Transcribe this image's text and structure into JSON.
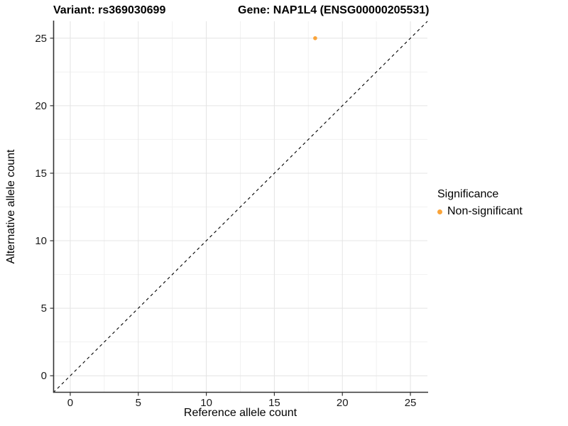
{
  "titles": {
    "left": "Variant: rs369030699",
    "right": "Gene: NAP1L4 (ENSG00000205531)"
  },
  "axes": {
    "x_label": "Reference allele count",
    "y_label": "Alternative allele count"
  },
  "legend": {
    "title": "Significance",
    "items": [
      {
        "label": "Non-significant",
        "color": "#FAA43A"
      }
    ]
  },
  "colors": {
    "point": "#FAA43A",
    "grid_major": "#E4E4E4",
    "grid_minor": "#F1F1F1",
    "axis_line": "#333333",
    "tick_mark": "#333333",
    "tick_label": "#1a1a1a",
    "reference_line": "#000000"
  },
  "chart_data": {
    "type": "scatter",
    "title": "Variant: rs369030699 — Gene: NAP1L4 (ENSG00000205531)",
    "xlabel": "Reference allele count",
    "ylabel": "Alternative allele count",
    "xlim": [
      -1.25,
      26.25
    ],
    "ylim": [
      -1.25,
      26.25
    ],
    "x_ticks": [
      0,
      5,
      10,
      15,
      20,
      25
    ],
    "y_ticks": [
      0,
      5,
      10,
      15,
      20,
      25
    ],
    "minor_grid_step": 2.5,
    "grid": true,
    "legend_position": "right",
    "series": [
      {
        "name": "Non-significant",
        "color": "#FAA43A",
        "points": [
          {
            "x": 18,
            "y": 25
          }
        ]
      }
    ],
    "reference_line": {
      "kind": "identity y=x",
      "style": "dashed",
      "color": "#000000"
    }
  }
}
